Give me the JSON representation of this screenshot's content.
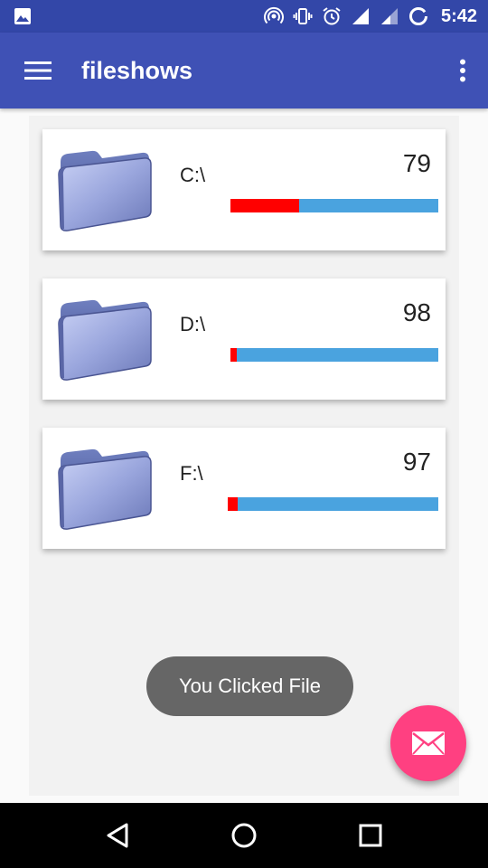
{
  "status_bar": {
    "time": "5:42",
    "icons": [
      "image-notification-icon",
      "hotspot-icon",
      "vibrate-icon",
      "alarm-icon",
      "signal-icon",
      "signal-icon",
      "battery-charging-icon"
    ]
  },
  "app_bar": {
    "title": "fileshows",
    "menu_icon": "hamburger-menu-icon",
    "more_icon": "more-vert-icon",
    "color": "#3f51b5",
    "status_color": "#3347a8"
  },
  "drives": [
    {
      "label": "C:\\",
      "value": "79",
      "used_fraction": 0.33
    },
    {
      "label": "D:\\",
      "value": "98",
      "used_fraction": 0.03
    },
    {
      "label": "F:\\",
      "value": "97",
      "used_fraction": 0.047
    }
  ],
  "bar_colors": {
    "used": "#ff0000",
    "free": "#4aa3df"
  },
  "toast": {
    "text": "You Clicked File"
  },
  "fab": {
    "icon": "email-icon",
    "color": "#ff4081"
  },
  "nav_bar": {
    "icons": [
      "back-icon",
      "home-icon",
      "recents-icon"
    ]
  }
}
